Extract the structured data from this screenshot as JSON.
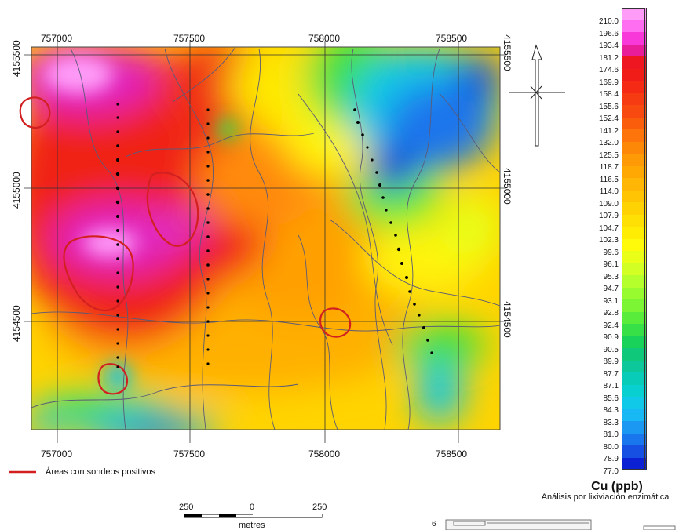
{
  "map": {
    "x_ticks": [
      "757000",
      "757500",
      "758000",
      "758500"
    ],
    "y_ticks_left": [
      "4155500",
      "4155000",
      "4154500"
    ],
    "y_ticks_right": [
      "4155500",
      "4155000",
      "4154500"
    ]
  },
  "legend": {
    "positive_label": "Áreas con sondeos positivos",
    "positive_color": "#d22020",
    "colorbar_values": [
      "210.0",
      "196.6",
      "193.4",
      "181.2",
      "174.6",
      "169.9",
      "158.4",
      "155.6",
      "152.4",
      "141.2",
      "132.0",
      "125.5",
      "118.7",
      "116.5",
      "114.0",
      "109.0",
      "107.9",
      "104.7",
      "102.3",
      "99.6",
      "96.1",
      "95.3",
      "94.7",
      "93.1",
      "92.8",
      "92.4",
      "90.9",
      "90.5",
      "89.9",
      "87.7",
      "87.1",
      "85.6",
      "84.3",
      "83.3",
      "81.0",
      "80.0",
      "78.9",
      "77.0"
    ],
    "colorbar_colors": [
      "#ff9cf8",
      "#ff6ef0",
      "#f838d8",
      "#e81d9a",
      "#ee1620",
      "#f01c18",
      "#f42a14",
      "#f63a12",
      "#f84a10",
      "#fa5e0c",
      "#fc740a",
      "#fd8808",
      "#fe9a06",
      "#ffa804",
      "#ffb604",
      "#ffc404",
      "#ffd204",
      "#ffe004",
      "#ffee04",
      "#fffa0a",
      "#eaff18",
      "#d2ff24",
      "#b4ff2c",
      "#98fb30",
      "#7cf534",
      "#5aec3a",
      "#36e046",
      "#18d25a",
      "#10c87a",
      "#0cc89a",
      "#08ccb8",
      "#08d0d0",
      "#10c8e8",
      "#18b8f4",
      "#1a98f2",
      "#1a76ec",
      "#1650e2",
      "#0c20d4"
    ],
    "unit_title": "Cu (ppb)",
    "method_subtitle": "Análisis por lixiviación enzimática"
  },
  "scale_bar": {
    "labels": [
      "250",
      "0",
      "250"
    ],
    "unit": "metres"
  },
  "inset": {
    "label": "6"
  }
}
